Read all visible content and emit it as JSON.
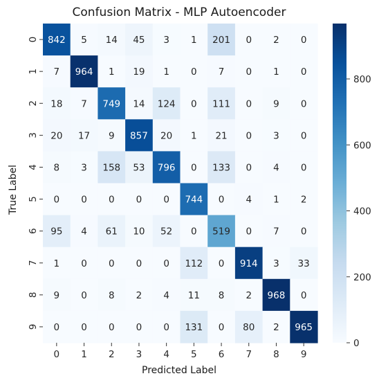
{
  "chart_data": {
    "type": "heatmap",
    "title": "Confusion Matrix - MLP Autoencoder",
    "xlabel": "Predicted Label",
    "ylabel": "True Label",
    "x_categories": [
      "0",
      "1",
      "2",
      "3",
      "4",
      "5",
      "6",
      "7",
      "8",
      "9"
    ],
    "y_categories": [
      "0",
      "1",
      "2",
      "3",
      "4",
      "5",
      "6",
      "7",
      "8",
      "9"
    ],
    "values": [
      [
        842,
        5,
        14,
        45,
        3,
        1,
        201,
        0,
        2,
        0
      ],
      [
        7,
        964,
        1,
        19,
        1,
        0,
        7,
        0,
        1,
        0
      ],
      [
        18,
        7,
        749,
        14,
        124,
        0,
        111,
        0,
        9,
        0
      ],
      [
        20,
        17,
        9,
        857,
        20,
        1,
        21,
        0,
        3,
        0
      ],
      [
        8,
        3,
        158,
        53,
        796,
        0,
        133,
        0,
        4,
        0
      ],
      [
        0,
        0,
        0,
        0,
        0,
        744,
        0,
        4,
        1,
        2
      ],
      [
        95,
        4,
        61,
        10,
        52,
        0,
        519,
        0,
        7,
        0
      ],
      [
        1,
        0,
        0,
        0,
        0,
        112,
        0,
        914,
        3,
        33
      ],
      [
        9,
        0,
        8,
        2,
        4,
        11,
        8,
        2,
        968,
        0
      ],
      [
        0,
        0,
        0,
        0,
        0,
        131,
        0,
        80,
        2,
        965
      ]
    ],
    "colorscale": "Blues",
    "color_min": 0,
    "color_max": 968,
    "colorbar_ticks": [
      0,
      200,
      400,
      600,
      800
    ],
    "grid": false
  }
}
